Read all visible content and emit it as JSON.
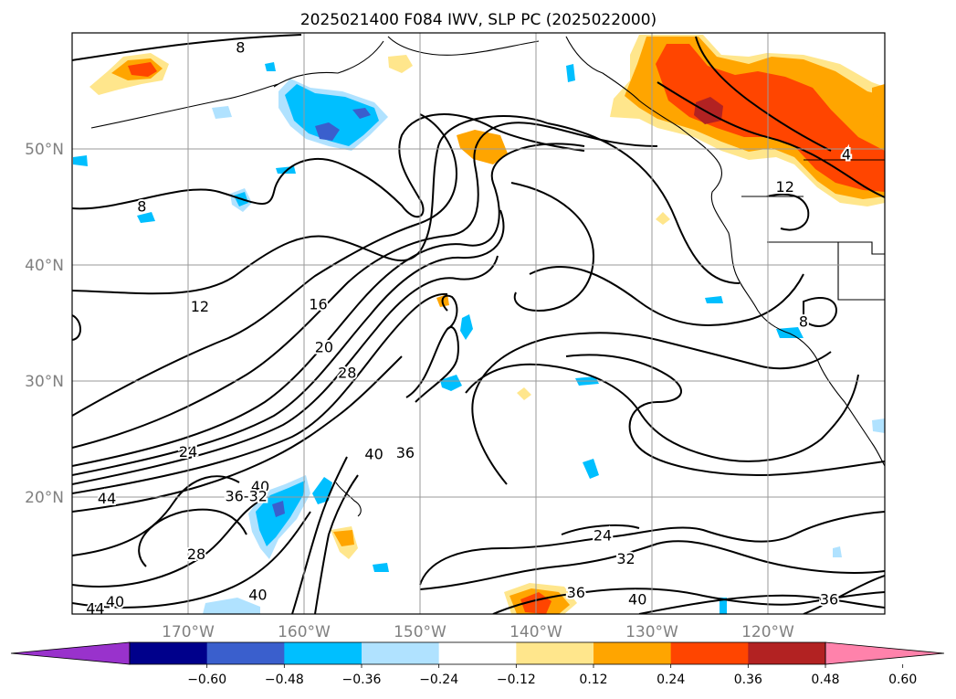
{
  "chart_data": {
    "type": "contour-map",
    "title": "2025021400 F084 IWV, SLP PC (2025022000)",
    "x_ticks": [
      "170°W",
      "160°W",
      "150°W",
      "140°W",
      "130°W",
      "120°W"
    ],
    "y_ticks": [
      "20°N",
      "30°N",
      "40°N",
      "50°N"
    ],
    "lon_range": [
      -180,
      -110
    ],
    "lat_range": [
      10,
      60
    ],
    "grid": true,
    "colorbar": {
      "orientation": "horizontal",
      "extend": "both",
      "tick_labels": [
        "−0.60",
        "−0.48",
        "−0.36",
        "−0.24",
        "−0.12",
        "0.12",
        "0.24",
        "0.36",
        "0.48",
        "0.60"
      ],
      "colors": [
        "#9932cc",
        "#00008b",
        "#3a5fcd",
        "#00bfff",
        "#b0e2ff",
        "#ffffff",
        "#ffe68c",
        "#ffa500",
        "#ff4500",
        "#b22222",
        "#ff82ab"
      ]
    },
    "contour_labels": [
      {
        "text": "8",
        "lon": -165.5,
        "lat": 58.8
      },
      {
        "text": "8",
        "lon": -174.0,
        "lat": 45.1
      },
      {
        "text": "12",
        "lon": -169.0,
        "lat": 36.5
      },
      {
        "text": "16",
        "lon": -158.8,
        "lat": 36.7
      },
      {
        "text": "20",
        "lon": -158.3,
        "lat": 33.0
      },
      {
        "text": "28",
        "lon": -156.3,
        "lat": 30.8
      },
      {
        "text": "24",
        "lon": -170.0,
        "lat": 24.0
      },
      {
        "text": "40",
        "lon": -163.8,
        "lat": 21.0
      },
      {
        "text": "40",
        "lon": -154.0,
        "lat": 23.8
      },
      {
        "text": "36",
        "lon": -151.3,
        "lat": 23.9
      },
      {
        "text": "36-32",
        "lon": -165.0,
        "lat": 20.2
      },
      {
        "text": "44",
        "lon": -177.0,
        "lat": 20.0
      },
      {
        "text": "28",
        "lon": -169.3,
        "lat": 15.2
      },
      {
        "text": "40",
        "lon": -176.3,
        "lat": 11.1
      },
      {
        "text": "44",
        "lon": -178.0,
        "lat": 10.5
      },
      {
        "text": "40",
        "lon": -164.0,
        "lat": 11.7
      },
      {
        "text": "24",
        "lon": -134.3,
        "lat": 16.8
      },
      {
        "text": "32",
        "lon": -132.3,
        "lat": 14.8
      },
      {
        "text": "36",
        "lon": -136.6,
        "lat": 11.9
      },
      {
        "text": "40",
        "lon": -131.3,
        "lat": 11.3
      },
      {
        "text": "36",
        "lon": -114.8,
        "lat": 11.3
      },
      {
        "text": "12",
        "lon": -118.6,
        "lat": 46.8
      },
      {
        "text": "8",
        "lon": -117.0,
        "lat": 35.2
      },
      {
        "text": "4",
        "lon": -113.3,
        "lat": 49.6
      }
    ]
  }
}
